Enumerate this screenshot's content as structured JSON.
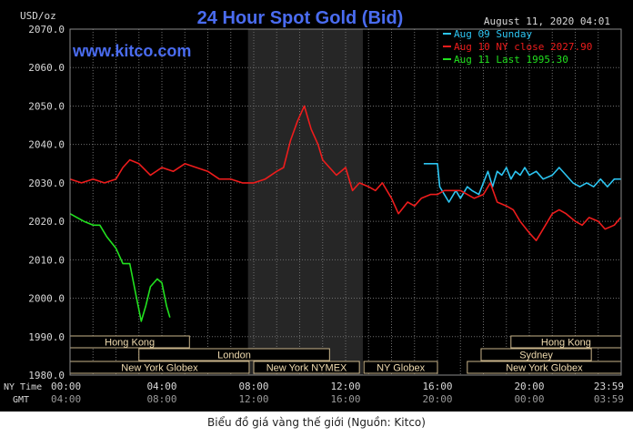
{
  "chart_data": {
    "type": "line",
    "title": "24 Hour Spot Gold (Bid)",
    "timestamp": "August 11, 2020 04:01",
    "ylabel": "USD/oz",
    "watermark": "www.kitco.com",
    "ylim": [
      1980,
      2070
    ],
    "yticks": [
      "2070.0",
      "2060.0",
      "2050.0",
      "2040.0",
      "2030.0",
      "2020.0",
      "2010.0",
      "2000.0",
      "1990.0",
      "1980.0"
    ],
    "y_tick_values": [
      2070,
      2060,
      2050,
      2040,
      2030,
      2020,
      2010,
      2000,
      1990,
      1980
    ],
    "x_unit": "hours (New York time)",
    "xlim": [
      0,
      24
    ],
    "x_row_labels": [
      "NY Time",
      "GMT"
    ],
    "x_ticks_ny": [
      "00:00",
      "04:00",
      "08:00",
      "12:00",
      "16:00",
      "20:00",
      "23:59"
    ],
    "x_ticks_gmt": [
      "04:00",
      "08:00",
      "12:00",
      "16:00",
      "20:00",
      "00:00",
      "03:59"
    ],
    "x_tick_values": [
      0,
      4,
      8,
      12,
      16,
      20,
      23.98
    ],
    "shaded_region": [
      7.75,
      12.75
    ],
    "colors": {
      "background": "#000000",
      "grid": "#6e6e6e",
      "title": "#4a6cf0",
      "shade": "#262626",
      "axis_text": "#d8d8d8"
    },
    "series": [
      {
        "name": "Aug 09 Sunday",
        "color": "#2cc5f2",
        "x": [
          15.4,
          16.0,
          16.1,
          16.3,
          16.5,
          16.8,
          17.0,
          17.3,
          17.5,
          17.8,
          18.0,
          18.2,
          18.4,
          18.6,
          18.8,
          19.0,
          19.2,
          19.4,
          19.6,
          19.8,
          20.0,
          20.3,
          20.6,
          21.0,
          21.3,
          21.6,
          21.9,
          22.2,
          22.5,
          22.8,
          23.1,
          23.4,
          23.7,
          23.98
        ],
        "values": [
          2035,
          2035,
          2029,
          2027,
          2025,
          2028,
          2026,
          2029,
          2028,
          2027,
          2030,
          2033,
          2029,
          2033,
          2032,
          2034,
          2031,
          2033,
          2032,
          2034,
          2032,
          2033,
          2031,
          2032,
          2034,
          2032,
          2030,
          2029,
          2030,
          2029,
          2031,
          2029,
          2031,
          2031
        ]
      },
      {
        "name": "Aug 10 NY close 2027.90",
        "color": "#ee1c1c",
        "x": [
          0,
          0.5,
          1.0,
          1.5,
          2.0,
          2.3,
          2.6,
          3.0,
          3.5,
          4.0,
          4.5,
          5.0,
          5.5,
          6.0,
          6.5,
          7.0,
          7.5,
          8.0,
          8.5,
          9.0,
          9.3,
          9.6,
          9.9,
          10.2,
          10.5,
          10.8,
          11.0,
          11.3,
          11.6,
          12.0,
          12.3,
          12.6,
          13.0,
          13.3,
          13.6,
          14.0,
          14.3,
          14.7,
          15.0,
          15.3,
          15.7,
          16.0,
          16.3,
          16.6,
          17.0,
          17.3,
          17.6,
          18.0,
          18.3,
          18.6,
          19.0,
          19.3,
          19.6,
          20.0,
          20.3,
          20.6,
          21.0,
          21.3,
          21.6,
          22.0,
          22.3,
          22.6,
          23.0,
          23.3,
          23.7,
          23.98
        ],
        "values": [
          2031,
          2030,
          2031,
          2030,
          2031,
          2034,
          2036,
          2035,
          2032,
          2034,
          2033,
          2035,
          2034,
          2033,
          2031,
          2031,
          2030,
          2030,
          2031,
          2033,
          2034,
          2041,
          2046,
          2050,
          2044,
          2040,
          2036,
          2034,
          2032,
          2034,
          2028,
          2030,
          2029,
          2028,
          2030,
          2026,
          2022,
          2025,
          2024,
          2026,
          2027,
          2027,
          2028,
          2028,
          2028,
          2027,
          2026,
          2027,
          2030,
          2025,
          2024,
          2023,
          2020,
          2017,
          2015,
          2018,
          2022,
          2023,
          2022,
          2020,
          2019,
          2021,
          2020,
          2018,
          2019,
          2021
        ]
      },
      {
        "name": "Aug 11 Last 1995.30",
        "color": "#22e11f",
        "x": [
          0,
          0.3,
          0.6,
          1.0,
          1.3,
          1.6,
          2.0,
          2.3,
          2.6,
          2.9,
          3.1,
          3.3,
          3.5,
          3.8,
          4.0,
          4.2,
          4.35
        ],
        "values": [
          2022,
          2021,
          2020,
          2019,
          2019,
          2016,
          2013,
          2009,
          2009,
          2000,
          1994,
          1998,
          2003,
          2005,
          2004,
          1998,
          1995
        ]
      }
    ],
    "market_sessions": [
      {
        "label": "Hong Kong",
        "row": 0,
        "start": 0,
        "end": 5.2
      },
      {
        "label": "London",
        "row": 1,
        "start": 3.0,
        "end": 11.3
      },
      {
        "label": "New York Globex",
        "row": 2,
        "start": 0,
        "end": 7.8
      },
      {
        "label": "New York NYMEX",
        "row": 2,
        "start": 8.0,
        "end": 12.6
      },
      {
        "label": "NY Globex",
        "row": 2,
        "start": 12.8,
        "end": 16.0
      },
      {
        "label": "Hong Kong",
        "row": 0,
        "start": 19.2,
        "end": 24
      },
      {
        "label": "Sydney",
        "row": 1,
        "start": 17.9,
        "end": 22.7
      },
      {
        "label": "New York Globex",
        "row": 2,
        "start": 17.3,
        "end": 24
      }
    ]
  },
  "caption": "Biểu đồ giá vàng thế giới (Nguồn: Kitco)"
}
